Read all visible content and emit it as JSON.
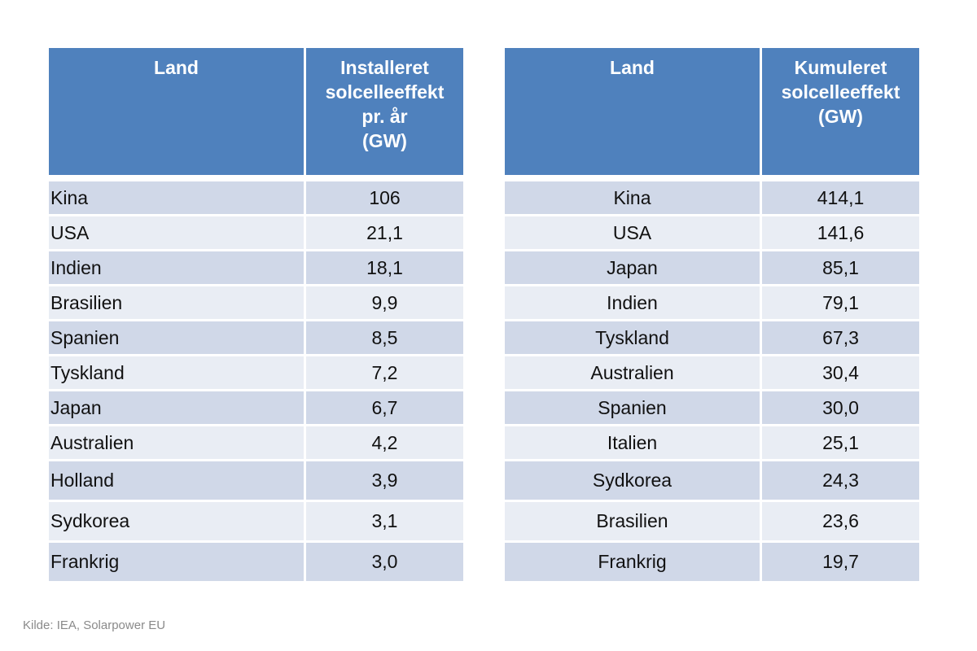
{
  "tables": [
    {
      "id": "installed",
      "headers": {
        "col1": [
          "Land"
        ],
        "col2": [
          "Installeret",
          "solcelleeffekt",
          "pr. år",
          "(GW)"
        ]
      },
      "rows": [
        {
          "country": "Kina",
          "value": "106"
        },
        {
          "country": "USA",
          "value": "21,1"
        },
        {
          "country": "Indien",
          "value": "18,1"
        },
        {
          "country": "Brasilien",
          "value": "9,9"
        },
        {
          "country": "Spanien",
          "value": "8,5"
        },
        {
          "country": "Tyskland",
          "value": "7,2"
        },
        {
          "country": "Japan",
          "value": "6,7"
        },
        {
          "country": "Australien",
          "value": "4,2"
        },
        {
          "country": "Holland",
          "value": "3,9"
        },
        {
          "country": "Sydkorea",
          "value": "3,1"
        },
        {
          "country": "Frankrig",
          "value": "3,0"
        }
      ]
    },
    {
      "id": "cumulative",
      "headers": {
        "col1": [
          "Land"
        ],
        "col2": [
          "Kumuleret",
          "solcelleeffekt",
          "(GW)"
        ]
      },
      "rows": [
        {
          "country": "Kina",
          "value": "414,1"
        },
        {
          "country": "USA",
          "value": "141,6"
        },
        {
          "country": "Japan",
          "value": "85,1"
        },
        {
          "country": "Indien",
          "value": "79,1"
        },
        {
          "country": "Tyskland",
          "value": "67,3"
        },
        {
          "country": "Australien",
          "value": "30,4"
        },
        {
          "country": "Spanien",
          "value": "30,0"
        },
        {
          "country": "Italien",
          "value": "25,1"
        },
        {
          "country": "Sydkorea",
          "value": "24,3"
        },
        {
          "country": "Brasilien",
          "value": "23,6"
        },
        {
          "country": "Frankrig",
          "value": "19,7"
        }
      ]
    }
  ],
  "source": "Kilde: IEA, Solarpower EU",
  "colors": {
    "header_bg": "#4f81bd",
    "row_odd": "#d0d8e8",
    "row_even": "#e9edf4",
    "header_text": "#ffffff",
    "source_text": "#8a8a8a"
  }
}
